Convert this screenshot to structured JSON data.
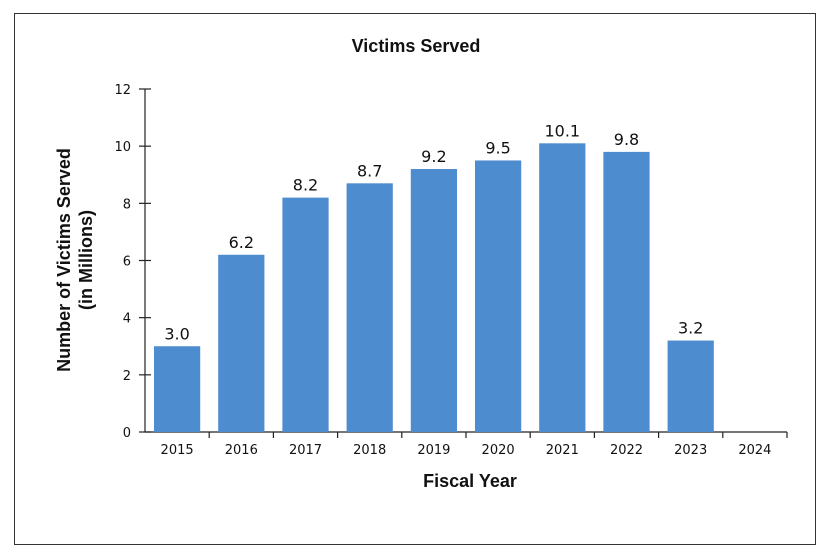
{
  "chart_data": {
    "type": "bar",
    "title": "Victims Served",
    "xlabel": "Fiscal Year",
    "ylabel_line1": "Number of Victims Served",
    "ylabel_line2": "(in Millions)",
    "categories": [
      "2015",
      "2016",
      "2017",
      "2018",
      "2019",
      "2020",
      "2021",
      "2022",
      "2023",
      "2024"
    ],
    "values": [
      3.0,
      6.2,
      8.2,
      8.7,
      9.2,
      9.5,
      10.1,
      9.8,
      3.2,
      null
    ],
    "value_labels": [
      "3.0",
      "6.2",
      "8.2",
      "8.7",
      "9.2",
      "9.5",
      "10.1",
      "9.8",
      "3.2",
      ""
    ],
    "ylim": [
      0,
      12
    ],
    "yticks": [
      "0",
      "2",
      "4",
      "6",
      "8",
      "10",
      "12"
    ],
    "bar_color": "#4d8ccf",
    "grid": false,
    "legend": false
  }
}
